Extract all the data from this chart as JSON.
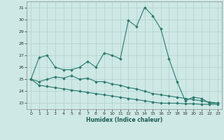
{
  "xlabel": "Humidex (Indice chaleur)",
  "x": [
    0,
    1,
    2,
    3,
    4,
    5,
    6,
    7,
    8,
    9,
    10,
    11,
    12,
    13,
    14,
    15,
    16,
    17,
    18,
    19,
    20,
    21,
    22,
    23
  ],
  "line1": [
    25.0,
    26.8,
    27.0,
    26.0,
    25.8,
    25.8,
    26.0,
    26.5,
    26.0,
    27.2,
    27.0,
    26.7,
    29.9,
    29.4,
    31.0,
    30.3,
    29.2,
    26.7,
    24.8,
    23.2,
    23.5,
    23.4,
    23.0,
    23.0
  ],
  "line2": [
    25.0,
    24.8,
    25.0,
    25.2,
    25.1,
    25.3,
    25.0,
    25.1,
    24.8,
    24.8,
    24.6,
    24.5,
    24.3,
    24.2,
    24.0,
    23.8,
    23.7,
    23.6,
    23.5,
    23.4,
    23.3,
    23.2,
    23.1,
    23.0
  ],
  "line3": [
    25.0,
    24.5,
    24.4,
    24.3,
    24.2,
    24.1,
    24.0,
    23.9,
    23.8,
    23.7,
    23.6,
    23.5,
    23.4,
    23.3,
    23.2,
    23.1,
    23.0,
    23.0,
    23.0,
    22.95,
    22.95,
    22.9,
    22.9,
    22.9
  ],
  "ylim": [
    22.5,
    31.5
  ],
  "yticks": [
    23,
    24,
    25,
    26,
    27,
    28,
    29,
    30,
    31
  ],
  "xticks": [
    0,
    1,
    2,
    3,
    4,
    5,
    6,
    7,
    8,
    9,
    10,
    11,
    12,
    13,
    14,
    15,
    16,
    17,
    18,
    19,
    20,
    21,
    22,
    23
  ],
  "line_color": "#2a7a6e",
  "bg_color": "#cde8e5",
  "grid_color": "#b0d0cc"
}
